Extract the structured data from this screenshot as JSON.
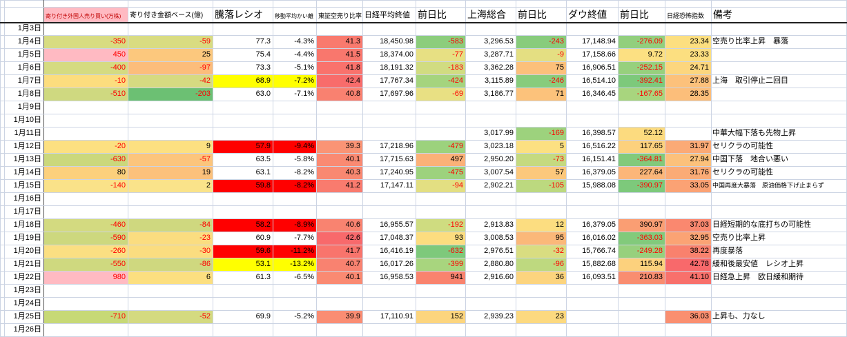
{
  "sheet": {
    "gridline_color": "#ccd4e3",
    "header_underline_color": "#1f1f1f",
    "negative_text_color": "#ff0000",
    "highlight_red": "#ff0000",
    "highlight_yellow": "#ffff00",
    "pink": "#ffbac2",
    "columns": [
      {
        "key": "a",
        "label": "",
        "width": 6
      },
      {
        "key": "date",
        "label": "",
        "width": 57
      },
      {
        "key": "foreign",
        "label": "寄り付き外国人売り買い(万株)",
        "width": 122,
        "header_size": 8,
        "header_bg": "#ffbac2",
        "header_fg": "#c00000"
      },
      {
        "key": "amount",
        "label": "寄り付き金額ベース(億)",
        "width": 123,
        "header_size": 10
      },
      {
        "key": "ratio",
        "label": "騰落レシオ",
        "width": 87,
        "header_size": 14
      },
      {
        "key": "kairi",
        "label": "移動平均かい離",
        "width": 63,
        "header_size": 8
      },
      {
        "key": "karauri",
        "label": "東証空売り比率",
        "width": 67,
        "header_size": 9
      },
      {
        "key": "nikkei",
        "label": "日経平均終値",
        "width": 77,
        "header_size": 11
      },
      {
        "key": "nikkei_chg",
        "label": "前日比",
        "width": 72,
        "header_size": 14
      },
      {
        "key": "shanghai",
        "label": "上海総合",
        "width": 73,
        "header_size": 14
      },
      {
        "key": "shanghai_chg",
        "label": "前日比",
        "width": 73,
        "header_size": 14
      },
      {
        "key": "dow",
        "label": "ダウ終値",
        "width": 75,
        "header_size": 14
      },
      {
        "key": "dow_chg",
        "label": "前日比",
        "width": 68,
        "header_size": 14
      },
      {
        "key": "vix",
        "label": "日経恐怖指数",
        "width": 67,
        "header_size": 9
      },
      {
        "key": "remark",
        "label": "備考",
        "width": 196,
        "header_size": 14
      }
    ],
    "rows": [
      {
        "date": "1月3日",
        "cells": {}
      },
      {
        "date": "1月4日",
        "cells": {
          "foreign": {
            "t": "-350",
            "bg": "#d8dc81"
          },
          "amount": {
            "t": "-59",
            "bg": "#d9dc81"
          },
          "ratio": {
            "t": "77.3"
          },
          "kairi": {
            "t": "-4.3%",
            "fg": "#000000"
          },
          "karauri": {
            "t": "41.3",
            "bg": "#f97a6e"
          },
          "nikkei": {
            "t": "18,450.98"
          },
          "nikkei_chg": {
            "t": "-583",
            "bg": "#8ccd7c"
          },
          "shanghai": {
            "t": "3,296.53"
          },
          "shanghai_chg": {
            "t": "-243",
            "bg": "#88cc7c"
          },
          "dow": {
            "t": "17,148.94"
          },
          "dow_chg": {
            "t": "-276.09",
            "bg": "#92cf7d"
          },
          "vix": {
            "t": "23.34",
            "bg": "#fcdf80"
          },
          "remark": {
            "t": "空売り比率上昇　暴落"
          }
        }
      },
      {
        "date": "1月5日",
        "cells": {
          "foreign": {
            "t": "450",
            "bg": "#ffbac2",
            "fg": "#ff0000"
          },
          "amount": {
            "t": "25",
            "bg": "#fcc87d"
          },
          "ratio": {
            "t": "75.4"
          },
          "kairi": {
            "t": "-4.4%",
            "fg": "#000000"
          },
          "karauri": {
            "t": "41.5",
            "bg": "#f9776d"
          },
          "nikkei": {
            "t": "18,374.00"
          },
          "nikkei_chg": {
            "t": "-77",
            "bg": "#e7e083"
          },
          "shanghai": {
            "t": "3,287.71"
          },
          "shanghai_chg": {
            "t": "-9",
            "bg": "#e4df82"
          },
          "dow": {
            "t": "17,158.66"
          },
          "dow_chg": {
            "t": "9.72",
            "bg": "#fce082"
          },
          "vix": {
            "t": "23.33",
            "bg": "#fcdf80"
          }
        }
      },
      {
        "date": "1月6日",
        "cells": {
          "foreign": {
            "t": "-400",
            "bg": "#d5db81"
          },
          "amount": {
            "t": "-97",
            "bg": "#fcbd7b"
          },
          "ratio": {
            "t": "73.3"
          },
          "kairi": {
            "t": "-5.1%",
            "fg": "#000000"
          },
          "karauri": {
            "t": "41.8",
            "bg": "#f9726c"
          },
          "nikkei": {
            "t": "18,191.32"
          },
          "nikkei_chg": {
            "t": "-183",
            "bg": "#d1dc81"
          },
          "shanghai": {
            "t": "3,362.28"
          },
          "shanghai_chg": {
            "t": "75",
            "bg": "#fcc07b"
          },
          "dow": {
            "t": "16,906.51"
          },
          "dow_chg": {
            "t": "-252.15",
            "bg": "#97d07d"
          },
          "vix": {
            "t": "24.71",
            "bg": "#fcd67e"
          }
        }
      },
      {
        "date": "1月7日",
        "cells": {
          "foreign": {
            "t": "-10",
            "bg": "#fcdd7e"
          },
          "amount": {
            "t": "-42",
            "bg": "#d6da81"
          },
          "ratio": {
            "t": "68.9",
            "bg": "#ffff00"
          },
          "kairi": {
            "t": "-7.2%",
            "bg": "#ffff00",
            "fg": "#000000"
          },
          "karauri": {
            "t": "42.4",
            "bg": "#f86c6b"
          },
          "nikkei": {
            "t": "17,767.34"
          },
          "nikkei_chg": {
            "t": "-424",
            "bg": "#a5d47e"
          },
          "shanghai": {
            "t": "3,115.89"
          },
          "shanghai_chg": {
            "t": "-246",
            "bg": "#88cc7c"
          },
          "dow": {
            "t": "16,514.10"
          },
          "dow_chg": {
            "t": "-392.41",
            "bg": "#7dc97b"
          },
          "vix": {
            "t": "27.88",
            "bg": "#fcc17b"
          },
          "remark": {
            "t": "上海　取引停止二回目"
          }
        }
      },
      {
        "date": "1月8日",
        "cells": {
          "foreign": {
            "t": "-510",
            "bg": "#cfd980"
          },
          "amount": {
            "t": "-203",
            "bg": "#6cc073"
          },
          "ratio": {
            "t": "63.0"
          },
          "kairi": {
            "t": "-7.1%",
            "fg": "#000000"
          },
          "karauri": {
            "t": "40.8",
            "bg": "#f98170"
          },
          "nikkei": {
            "t": "17,697.96"
          },
          "nikkei_chg": {
            "t": "-69",
            "bg": "#e8e083"
          },
          "shanghai": {
            "t": "3,186.77"
          },
          "shanghai_chg": {
            "t": "71",
            "bg": "#fcc27b"
          },
          "dow": {
            "t": "16,346.45"
          },
          "dow_chg": {
            "t": "-167.65",
            "bg": "#a8d57e"
          },
          "vix": {
            "t": "28.35",
            "bg": "#fcbe7a"
          }
        }
      },
      {
        "date": "1月9日",
        "cells": {}
      },
      {
        "date": "1月10日",
        "cells": {}
      },
      {
        "date": "1月11日",
        "cells": {
          "shanghai": {
            "t": "3,017.99"
          },
          "shanghai_chg": {
            "t": "-169",
            "bg": "#9dd27d"
          },
          "dow": {
            "t": "16,398.57"
          },
          "dow_chg": {
            "t": "52.12",
            "bg": "#fcdb7f"
          },
          "remark": {
            "t": "中華大幅下落も先物上昇"
          }
        }
      },
      {
        "date": "1月12日",
        "cells": {
          "foreign": {
            "t": "-20",
            "bg": "#fce081"
          },
          "amount": {
            "t": "9",
            "bg": "#fce081"
          },
          "ratio": {
            "t": "57.9",
            "bg": "#ff0000"
          },
          "kairi": {
            "t": "-9.4%",
            "bg": "#ff0000",
            "fg": "#000000"
          },
          "karauri": {
            "t": "39.3",
            "bg": "#fa9475"
          },
          "nikkei": {
            "t": "17,218.96"
          },
          "nikkei_chg": {
            "t": "-479",
            "bg": "#9cd27d"
          },
          "shanghai": {
            "t": "3,023.18"
          },
          "shanghai_chg": {
            "t": "5",
            "bg": "#fce081"
          },
          "dow": {
            "t": "16,516.22"
          },
          "dow_chg": {
            "t": "117.65",
            "bg": "#fcd17d"
          },
          "vix": {
            "t": "31.97",
            "bg": "#fbaa76"
          },
          "remark": {
            "t": "セリクラの可能性"
          }
        }
      },
      {
        "date": "1月13日",
        "cells": {
          "foreign": {
            "t": "-630",
            "bg": "#cbd87c"
          },
          "amount": {
            "t": "-57",
            "bg": "#fcc57c"
          },
          "ratio": {
            "t": "63.5"
          },
          "kairi": {
            "t": "-5.8%",
            "fg": "#000000"
          },
          "karauri": {
            "t": "40.1",
            "bg": "#fa8a72"
          },
          "nikkei": {
            "t": "17,715.63"
          },
          "nikkei_chg": {
            "t": "497",
            "bg": "#fbb178"
          },
          "shanghai": {
            "t": "2,950.20"
          },
          "shanghai_chg": {
            "t": "-73",
            "bg": "#c5da80"
          },
          "dow": {
            "t": "16,151.41"
          },
          "dow_chg": {
            "t": "-364.81",
            "bg": "#82ca7b"
          },
          "vix": {
            "t": "27.94",
            "bg": "#fcc17b"
          },
          "remark": {
            "t": "中国下落　地合い悪い"
          }
        }
      },
      {
        "date": "1月14日",
        "cells": {
          "foreign": {
            "t": "80",
            "bg": "#fcd07c"
          },
          "amount": {
            "t": "19",
            "bg": "#fcc17b"
          },
          "ratio": {
            "t": "63.1"
          },
          "kairi": {
            "t": "-8.2%",
            "fg": "#000000"
          },
          "karauri": {
            "t": "40.3",
            "bg": "#f98871"
          },
          "nikkei": {
            "t": "17,240.95"
          },
          "nikkei_chg": {
            "t": "-475",
            "bg": "#9dd27d"
          },
          "shanghai": {
            "t": "3,007.54"
          },
          "shanghai_chg": {
            "t": "57",
            "bg": "#fcc87c"
          },
          "dow": {
            "t": "16,379.05"
          },
          "dow_chg": {
            "t": "227.64",
            "bg": "#fcb679"
          },
          "vix": {
            "t": "31.76",
            "bg": "#fbab76"
          },
          "remark": {
            "t": "セリクラの可能性"
          }
        }
      },
      {
        "date": "1月15日",
        "cells": {
          "foreign": {
            "t": "-140",
            "bg": "#fae289"
          },
          "amount": {
            "t": "2",
            "bg": "#fae38a"
          },
          "ratio": {
            "t": "59.8",
            "bg": "#ff0000"
          },
          "kairi": {
            "t": "-8.2%",
            "bg": "#ff0000",
            "fg": "#000000"
          },
          "karauri": {
            "t": "41.2",
            "bg": "#f97b6e"
          },
          "nikkei": {
            "t": "17,147.11"
          },
          "nikkei_chg": {
            "t": "-94",
            "bg": "#e3df82"
          },
          "shanghai": {
            "t": "2,902.21"
          },
          "shanghai_chg": {
            "t": "-105",
            "bg": "#bcd97f"
          },
          "dow": {
            "t": "15,988.08"
          },
          "dow_chg": {
            "t": "-390.97",
            "bg": "#7dc97b"
          },
          "vix": {
            "t": "33.05",
            "bg": "#fba274"
          },
          "remark": {
            "t": "中国再度大暴落　原油価格下げ止まらず",
            "sz": 9
          }
        }
      },
      {
        "date": "1月16日",
        "cells": {}
      },
      {
        "date": "1月17日",
        "cells": {}
      },
      {
        "date": "1月18日",
        "cells": {
          "foreign": {
            "t": "-460",
            "bg": "#d3da80"
          },
          "amount": {
            "t": "-84",
            "bg": "#cfd87f"
          },
          "ratio": {
            "t": "58.2",
            "bg": "#ff0000"
          },
          "kairi": {
            "t": "-8.9%",
            "bg": "#ff0000",
            "fg": "#000000"
          },
          "karauri": {
            "t": "40.6",
            "bg": "#f98370"
          },
          "nikkei": {
            "t": "16,955.57"
          },
          "nikkei_chg": {
            "t": "-192",
            "bg": "#cfdc80"
          },
          "shanghai": {
            "t": "2,913.83"
          },
          "shanghai_chg": {
            "t": "12",
            "bg": "#fcdd80"
          },
          "dow": {
            "t": "16,379.05"
          },
          "dow_chg": {
            "t": "390.97",
            "bg": "#fa9e73"
          },
          "vix": {
            "t": "37.03",
            "bg": "#fa886f"
          },
          "remark": {
            "t": "日経短期的な底打ちの可能性"
          }
        }
      },
      {
        "date": "1月19日",
        "cells": {
          "foreign": {
            "t": "-590",
            "bg": "#cdd87e"
          },
          "amount": {
            "t": "-23",
            "bg": "#fbdd80"
          },
          "ratio": {
            "t": "60.9"
          },
          "kairi": {
            "t": "-7.7%",
            "fg": "#000000"
          },
          "karauri": {
            "t": "42.6",
            "bg": "#f8696b"
          },
          "nikkei": {
            "t": "17,048.37"
          },
          "nikkei_chg": {
            "t": "93",
            "bg": "#fcdd7f"
          },
          "shanghai": {
            "t": "3,008.53"
          },
          "shanghai_chg": {
            "t": "95",
            "bg": "#fbb879"
          },
          "dow": {
            "t": "16,016.02"
          },
          "dow_chg": {
            "t": "-363.03",
            "bg": "#82ca7b"
          },
          "vix": {
            "t": "32.95",
            "bg": "#fba374"
          },
          "remark": {
            "t": "空売り比率上昇"
          }
        }
      },
      {
        "date": "1月20日",
        "cells": {
          "foreign": {
            "t": "-260",
            "bg": "#fbdf82"
          },
          "amount": {
            "t": "-30",
            "bg": "#fbdd80"
          },
          "ratio": {
            "t": "59.6",
            "bg": "#ff0000"
          },
          "kairi": {
            "t": "-11.2%",
            "bg": "#ff0000",
            "fg": "#000000"
          },
          "karauri": {
            "t": "41.7",
            "bg": "#f9746c"
          },
          "nikkei": {
            "t": "16,416.19"
          },
          "nikkei_chg": {
            "t": "-632",
            "bg": "#7ec97b"
          },
          "shanghai": {
            "t": "2,976.51"
          },
          "shanghai_chg": {
            "t": "-32",
            "bg": "#d9dd81"
          },
          "dow": {
            "t": "15,766.74"
          },
          "dow_chg": {
            "t": "-249.28",
            "bg": "#97d07d"
          },
          "vix": {
            "t": "38.22",
            "bg": "#f9816d"
          },
          "remark": {
            "t": "再度暴落"
          }
        }
      },
      {
        "date": "1月21日",
        "cells": {
          "foreign": {
            "t": "-550",
            "bg": "#cfd97f"
          },
          "amount": {
            "t": "-86",
            "bg": "#cfd87f"
          },
          "ratio": {
            "t": "53.1",
            "bg": "#ffff00"
          },
          "kairi": {
            "t": "-13.2%",
            "bg": "#ffff00",
            "fg": "#000000"
          },
          "karauri": {
            "t": "40.7",
            "bg": "#f98270"
          },
          "nikkei": {
            "t": "16,017.26"
          },
          "nikkei_chg": {
            "t": "-399",
            "bg": "#a8d57e"
          },
          "shanghai": {
            "t": "2,880.80"
          },
          "shanghai_chg": {
            "t": "-96",
            "bg": "#bed97f"
          },
          "dow": {
            "t": "15,882.68"
          },
          "dow_chg": {
            "t": "115.94",
            "bg": "#fcd17d"
          },
          "vix": {
            "t": "42.78",
            "bg": "#f8696b"
          },
          "remark": {
            "t": "緩和後最安値　レシオ上昇"
          }
        }
      },
      {
        "date": "1月22日",
        "cells": {
          "foreign": {
            "t": "980",
            "bg": "#ffbac2",
            "fg": "#ff0000"
          },
          "amount": {
            "t": "6",
            "bg": "#fcdf80"
          },
          "ratio": {
            "t": "61.3"
          },
          "kairi": {
            "t": "-6.5%",
            "fg": "#000000"
          },
          "karauri": {
            "t": "40.1",
            "bg": "#fa8a72"
          },
          "nikkei": {
            "t": "16,958.53"
          },
          "nikkei_chg": {
            "t": "941",
            "bg": "#f9836e"
          },
          "shanghai": {
            "t": "2,916.60"
          },
          "shanghai_chg": {
            "t": "36",
            "bg": "#fcd47e"
          },
          "dow": {
            "t": "16,093.51"
          },
          "dow_chg": {
            "t": "210.83",
            "bg": "#f98d70"
          },
          "vix": {
            "t": "41.10",
            "bg": "#f8706b"
          },
          "remark": {
            "t": "日経急上昇　欧日緩和期待"
          }
        }
      },
      {
        "date": "1月23日",
        "cells": {}
      },
      {
        "date": "1月24日",
        "cells": {}
      },
      {
        "date": "1月25日",
        "cells": {
          "foreign": {
            "t": "-710",
            "bg": "#c7d976"
          },
          "amount": {
            "t": "-52",
            "bg": "#d4da80"
          },
          "ratio": {
            "t": "69.9"
          },
          "kairi": {
            "t": "-5.2%",
            "fg": "#000000"
          },
          "karauri": {
            "t": "39.9",
            "bg": "#fa8d73"
          },
          "nikkei": {
            "t": "17,110.91"
          },
          "nikkei_chg": {
            "t": "152",
            "bg": "#fcd57e"
          },
          "shanghai": {
            "t": "2,939.23"
          },
          "shanghai_chg": {
            "t": "23",
            "bg": "#fcd97f"
          },
          "vix": {
            "t": "36.03",
            "bg": "#fa8f70"
          },
          "remark": {
            "t": "上昇も、力なし"
          }
        }
      },
      {
        "date": "1月26日",
        "cells": {}
      }
    ]
  }
}
